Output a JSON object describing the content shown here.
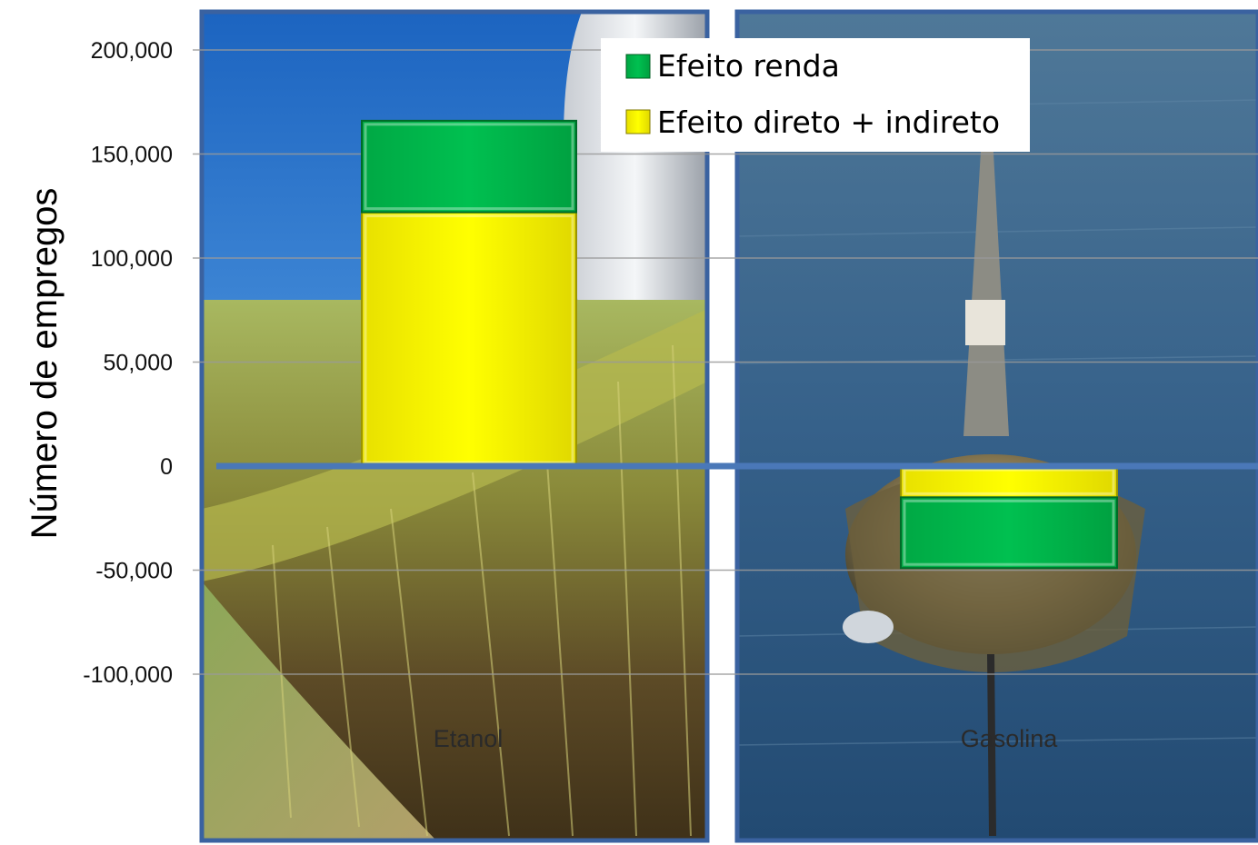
{
  "chart_data": {
    "type": "bar",
    "stacked": true,
    "categories": [
      "Etanol",
      "Gasolina"
    ],
    "series": [
      {
        "name": "Efeito direto + indireto",
        "values": [
          122000,
          -15000
        ]
      },
      {
        "name": "Efeito renda",
        "values": [
          44000,
          -34000
        ]
      }
    ],
    "ylabel": "Número de empregos",
    "xlabel": "",
    "title": "",
    "ylim": [
      -150000,
      200000
    ],
    "yticks": [
      200000,
      150000,
      100000,
      50000,
      0,
      -50000,
      -100000
    ],
    "ytick_labels": [
      "200,000",
      "150,000",
      "100,000",
      "50,000",
      "0",
      "-50,000",
      "-100,000"
    ],
    "grid": true,
    "legend_position": "top-right",
    "colors": {
      "Efeito direto + indireto": "#ffff00",
      "Efeito renda": "#00c050",
      "zero_line": "#4a78b8",
      "panel_border": "#3a62a0"
    }
  }
}
